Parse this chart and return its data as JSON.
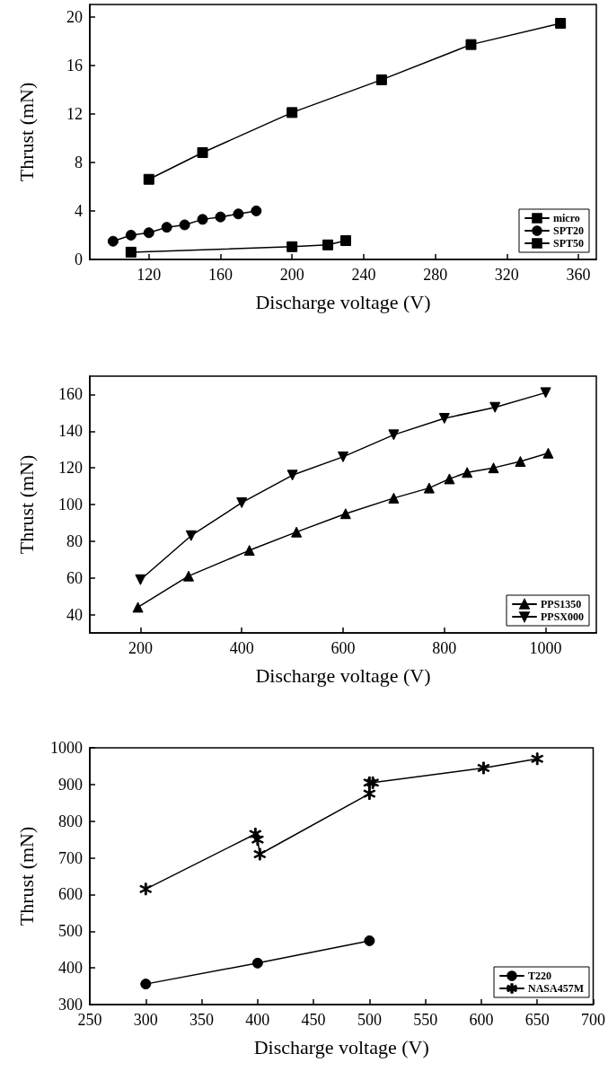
{
  "chart_data": [
    {
      "type": "line",
      "xlabel": "Discharge voltage (V)",
      "ylabel": "Thrust (mN)",
      "xlim": [
        87,
        370
      ],
      "xticks": [
        120,
        160,
        200,
        240,
        280,
        320,
        360
      ],
      "ylim": [
        0,
        21
      ],
      "yticks": [
        0,
        4,
        8,
        12,
        16,
        20
      ],
      "legend": "bottom right",
      "grid": false,
      "line_style": "solid",
      "series": [
        {
          "name": "micro",
          "color": "#000000",
          "marker": "square",
          "x": [
            110,
            200,
            220,
            230
          ],
          "values": [
            0.6,
            1.05,
            1.2,
            1.55
          ]
        },
        {
          "name": "SPT20",
          "color": "#000000",
          "marker": "circle",
          "x": [
            100,
            110,
            120,
            130,
            140,
            150,
            160,
            170,
            180
          ],
          "values": [
            1.5,
            2.0,
            2.2,
            2.65,
            2.85,
            3.3,
            3.5,
            3.75,
            4.0
          ]
        },
        {
          "name": "SPT50",
          "color": "#000000",
          "marker": "square",
          "x": [
            120,
            150,
            200,
            250,
            300,
            350
          ],
          "values": [
            6.6,
            8.8,
            12.1,
            14.8,
            17.7,
            19.45
          ]
        }
      ]
    },
    {
      "type": "line",
      "xlabel": "Discharge voltage (V)",
      "ylabel": "Thrust (mN)",
      "xlim": [
        100,
        1100
      ],
      "xticks": [
        200,
        400,
        600,
        800,
        1000
      ],
      "ylim": [
        30,
        170
      ],
      "yticks": [
        40,
        60,
        80,
        100,
        120,
        140,
        160
      ],
      "legend": "bottom right",
      "grid": false,
      "line_style": "solid",
      "series": [
        {
          "name": "PPS1350",
          "color": "#000000",
          "marker": "triangle",
          "x": [
            195,
            295,
            415,
            508,
            605,
            700,
            770,
            810,
            845,
            897,
            950,
            1005
          ],
          "values": [
            44,
            61,
            75,
            85,
            95,
            103.5,
            109,
            114,
            117.5,
            120,
            123.5,
            128
          ]
        },
        {
          "name": "PPSX000",
          "color": "#000000",
          "marker": "triangle-down",
          "x": [
            200,
            300,
            400,
            500,
            600,
            700,
            800,
            900,
            1000
          ],
          "values": [
            59,
            83,
            101,
            116,
            126,
            138,
            147,
            153,
            161
          ]
        }
      ]
    },
    {
      "type": "line",
      "xlabel": "Discharge voltage (V)",
      "ylabel": "Thrust (mN)",
      "xlim": [
        250,
        700
      ],
      "xticks": [
        250,
        300,
        350,
        400,
        450,
        500,
        550,
        600,
        650,
        700
      ],
      "ylim": [
        300,
        1000
      ],
      "yticks": [
        300,
        400,
        500,
        600,
        700,
        800,
        900,
        1000
      ],
      "legend": "bottom right",
      "grid": false,
      "line_style": "solid",
      "series": [
        {
          "name": "T220",
          "color": "#000000",
          "marker": "circle",
          "x": [
            300,
            400,
            500
          ],
          "values": [
            356,
            413,
            474
          ]
        },
        {
          "name": "NASA457M",
          "color": "#000000",
          "marker": "cross",
          "x": [
            300,
            398,
            400,
            402,
            500,
            500,
            503,
            602,
            650
          ],
          "values": [
            615,
            765,
            750,
            710,
            875,
            905,
            905,
            945,
            970
          ]
        }
      ]
    }
  ]
}
